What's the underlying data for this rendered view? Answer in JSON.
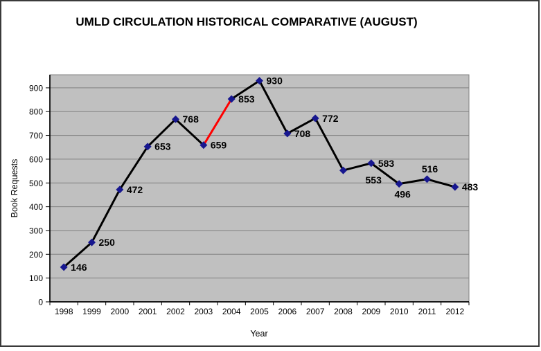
{
  "chart_data": {
    "type": "line",
    "title": "UMLD CIRCULATION HISTORICAL COMPARATIVE (AUGUST)",
    "xlabel": "Year",
    "ylabel": "Book Requests",
    "categories": [
      "1998",
      "1999",
      "2000",
      "2001",
      "2002",
      "2003",
      "2004",
      "2005",
      "2006",
      "2007",
      "2008",
      "2009",
      "2010",
      "2011",
      "2012"
    ],
    "values": [
      146,
      250,
      472,
      653,
      768,
      659,
      853,
      930,
      708,
      772,
      553,
      583,
      496,
      516,
      483
    ],
    "yticks": [
      0,
      100,
      200,
      300,
      400,
      500,
      600,
      700,
      800,
      900
    ],
    "ylim": [
      0,
      955
    ],
    "grid": "horizontal",
    "legend": "none",
    "data_labels": true,
    "colors": {
      "plot_bg": "#c0c0c0",
      "gridline": "#808080",
      "line": "#000000",
      "highlight": "#ff0000",
      "marker": "#17178f",
      "axis": "#000000",
      "frame_border": "#3a3a3a"
    },
    "highlight_segment": {
      "from_year": "2003",
      "to_year": "2004"
    },
    "label_positions": {
      "default": "right",
      "2008": "below-right",
      "2010": "below",
      "2011": "above"
    }
  }
}
